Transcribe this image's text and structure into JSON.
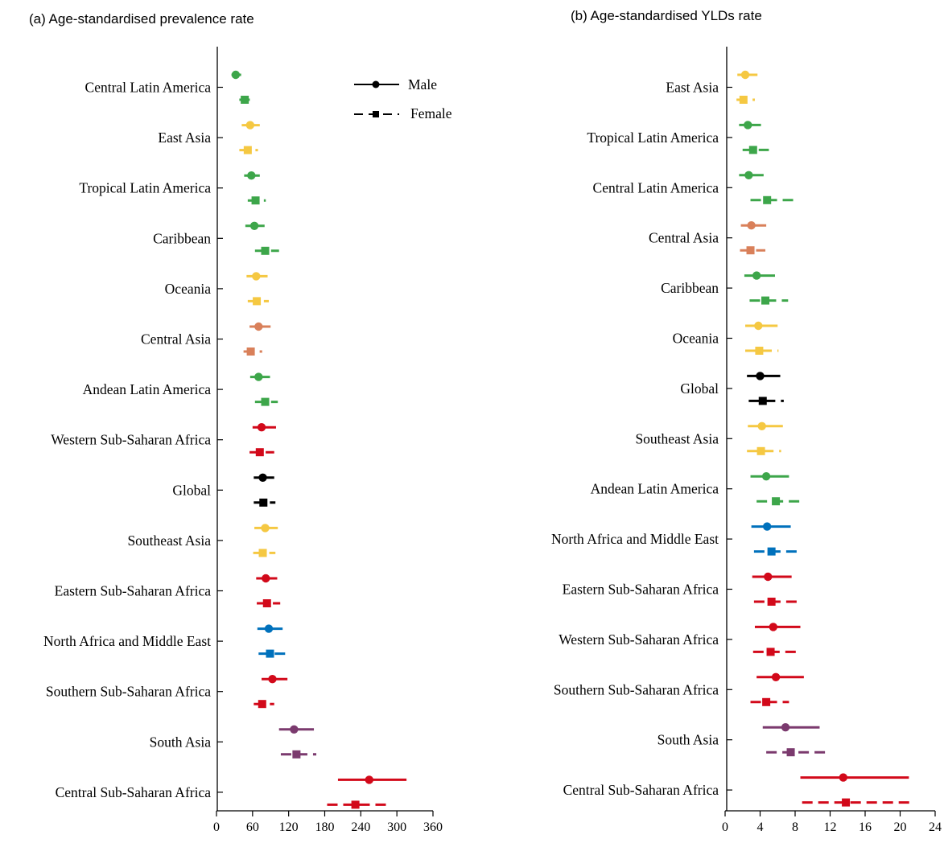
{
  "chart_data": [
    {
      "type": "forest",
      "title": "(a)  Age-standardised prevalence rate",
      "xlim": [
        0,
        360
      ],
      "xticks": [
        0,
        60,
        120,
        180,
        240,
        300,
        360
      ],
      "legend": {
        "placement": "top-right",
        "entries": [
          {
            "label": "Male",
            "line": "solid",
            "marker": "circle"
          },
          {
            "label": "Female",
            "line": "dashed",
            "marker": "square"
          }
        ]
      },
      "regions": [
        {
          "name": "Central Latin America",
          "color": "#3da64a",
          "male": {
            "est": 32,
            "lo": 25,
            "hi": 41
          },
          "female": {
            "est": 47,
            "lo": 38,
            "hi": 64
          }
        },
        {
          "name": "East Asia",
          "color": "#f5c842",
          "male": {
            "est": 56,
            "lo": 42,
            "hi": 72
          },
          "female": {
            "est": 52,
            "lo": 38,
            "hi": 69
          }
        },
        {
          "name": "Tropical Latin America",
          "color": "#3da64a",
          "male": {
            "est": 58,
            "lo": 46,
            "hi": 72
          },
          "female": {
            "est": 65,
            "lo": 52,
            "hi": 82
          }
        },
        {
          "name": "Caribbean",
          "color": "#3da64a",
          "male": {
            "est": 63,
            "lo": 48,
            "hi": 80
          },
          "female": {
            "est": 81,
            "lo": 64,
            "hi": 104
          }
        },
        {
          "name": "Oceania",
          "color": "#f5c842",
          "male": {
            "est": 66,
            "lo": 50,
            "hi": 85
          },
          "female": {
            "est": 67,
            "lo": 52,
            "hi": 87
          }
        },
        {
          "name": "Central Asia",
          "color": "#d9805a",
          "male": {
            "est": 70,
            "lo": 55,
            "hi": 90
          },
          "female": {
            "est": 57,
            "lo": 45,
            "hi": 76
          }
        },
        {
          "name": "Andean Latin America",
          "color": "#3da64a",
          "male": {
            "est": 70,
            "lo": 56,
            "hi": 89
          },
          "female": {
            "est": 81,
            "lo": 64,
            "hi": 102
          }
        },
        {
          "name": "Western Sub-Saharan Africa",
          "color": "#d2091a",
          "male": {
            "est": 75,
            "lo": 60,
            "hi": 99
          },
          "female": {
            "est": 72,
            "lo": 55,
            "hi": 96
          }
        },
        {
          "name": "Global",
          "color": "#000000",
          "male": {
            "est": 77,
            "lo": 62,
            "hi": 96
          },
          "female": {
            "est": 78,
            "lo": 62,
            "hi": 98
          }
        },
        {
          "name": "Southeast Asia",
          "color": "#f5c842",
          "male": {
            "est": 81,
            "lo": 63,
            "hi": 102
          },
          "female": {
            "est": 77,
            "lo": 61,
            "hi": 98
          }
        },
        {
          "name": "Eastern Sub-Saharan Africa",
          "color": "#d2091a",
          "male": {
            "est": 82,
            "lo": 66,
            "hi": 101
          },
          "female": {
            "est": 84,
            "lo": 67,
            "hi": 106
          }
        },
        {
          "name": "North Africa and Middle East",
          "color": "#0071bc",
          "male": {
            "est": 87,
            "lo": 68,
            "hi": 110
          },
          "female": {
            "est": 89,
            "lo": 70,
            "hi": 115
          }
        },
        {
          "name": "Southern Sub-Saharan Africa",
          "color": "#d2091a",
          "male": {
            "est": 93,
            "lo": 75,
            "hi": 118
          },
          "female": {
            "est": 76,
            "lo": 62,
            "hi": 96
          }
        },
        {
          "name": "South Asia",
          "color": "#7b3a6e",
          "male": {
            "est": 129,
            "lo": 104,
            "hi": 162
          },
          "female": {
            "est": 133,
            "lo": 107,
            "hi": 166
          }
        },
        {
          "name": "Central Sub-Saharan Africa",
          "color": "#d2091a",
          "male": {
            "est": 254,
            "lo": 202,
            "hi": 316
          },
          "female": {
            "est": 231,
            "lo": 184,
            "hi": 285
          }
        }
      ]
    },
    {
      "type": "forest",
      "title": "(b)  Age-standardised YLDs rate",
      "xlim": [
        0,
        24
      ],
      "xticks": [
        0,
        4,
        8,
        12,
        16,
        20,
        24
      ],
      "regions": [
        {
          "name": "East Asia",
          "color": "#f5c842",
          "male": {
            "est": 2.3,
            "lo": 1.4,
            "hi": 3.7
          },
          "female": {
            "est": 2.1,
            "lo": 1.3,
            "hi": 3.4
          }
        },
        {
          "name": "Tropical Latin America",
          "color": "#3da64a",
          "male": {
            "est": 2.6,
            "lo": 1.6,
            "hi": 4.1
          },
          "female": {
            "est": 3.2,
            "lo": 2.0,
            "hi": 5.0
          }
        },
        {
          "name": "Central Latin America",
          "color": "#3da64a",
          "male": {
            "est": 2.7,
            "lo": 1.6,
            "hi": 4.4
          },
          "female": {
            "est": 4.8,
            "lo": 2.9,
            "hi": 7.8
          }
        },
        {
          "name": "Central Asia",
          "color": "#d9805a",
          "male": {
            "est": 3.0,
            "lo": 1.8,
            "hi": 4.7
          },
          "female": {
            "est": 2.9,
            "lo": 1.7,
            "hi": 4.6
          }
        },
        {
          "name": "Caribbean",
          "color": "#3da64a",
          "male": {
            "est": 3.6,
            "lo": 2.2,
            "hi": 5.7
          },
          "female": {
            "est": 4.6,
            "lo": 2.8,
            "hi": 7.2
          }
        },
        {
          "name": "Oceania",
          "color": "#f5c842",
          "male": {
            "est": 3.8,
            "lo": 2.3,
            "hi": 6.0
          },
          "female": {
            "est": 3.9,
            "lo": 2.3,
            "hi": 6.1
          }
        },
        {
          "name": "Global",
          "color": "#000000",
          "male": {
            "est": 4.0,
            "lo": 2.5,
            "hi": 6.3
          },
          "female": {
            "est": 4.3,
            "lo": 2.7,
            "hi": 6.7
          }
        },
        {
          "name": "Southeast Asia",
          "color": "#f5c842",
          "male": {
            "est": 4.2,
            "lo": 2.6,
            "hi": 6.6
          },
          "female": {
            "est": 4.1,
            "lo": 2.5,
            "hi": 6.4
          }
        },
        {
          "name": "Andean Latin America",
          "color": "#3da64a",
          "male": {
            "est": 4.7,
            "lo": 2.9,
            "hi": 7.3
          },
          "female": {
            "est": 5.8,
            "lo": 3.6,
            "hi": 9.0
          }
        },
        {
          "name": "North Africa and Middle East",
          "color": "#0071bc",
          "male": {
            "est": 4.8,
            "lo": 3.0,
            "hi": 7.5
          },
          "female": {
            "est": 5.3,
            "lo": 3.3,
            "hi": 8.2
          }
        },
        {
          "name": "Eastern Sub-Saharan Africa",
          "color": "#d2091a",
          "male": {
            "est": 4.9,
            "lo": 3.1,
            "hi": 7.6
          },
          "female": {
            "est": 5.3,
            "lo": 3.3,
            "hi": 8.2
          }
        },
        {
          "name": "Western Sub-Saharan Africa",
          "color": "#d2091a",
          "male": {
            "est": 5.5,
            "lo": 3.4,
            "hi": 8.6
          },
          "female": {
            "est": 5.2,
            "lo": 3.2,
            "hi": 8.1
          }
        },
        {
          "name": "Southern Sub-Saharan Africa",
          "color": "#d2091a",
          "male": {
            "est": 5.8,
            "lo": 3.6,
            "hi": 9.0
          },
          "female": {
            "est": 4.7,
            "lo": 2.9,
            "hi": 7.3
          }
        },
        {
          "name": "South Asia",
          "color": "#7b3a6e",
          "male": {
            "est": 6.9,
            "lo": 4.3,
            "hi": 10.8
          },
          "female": {
            "est": 7.5,
            "lo": 4.7,
            "hi": 11.6
          }
        },
        {
          "name": "Central Sub-Saharan Africa",
          "color": "#d2091a",
          "male": {
            "est": 13.5,
            "lo": 8.6,
            "hi": 21.0
          },
          "female": {
            "est": 13.8,
            "lo": 8.8,
            "hi": 21.2
          }
        }
      ]
    }
  ]
}
